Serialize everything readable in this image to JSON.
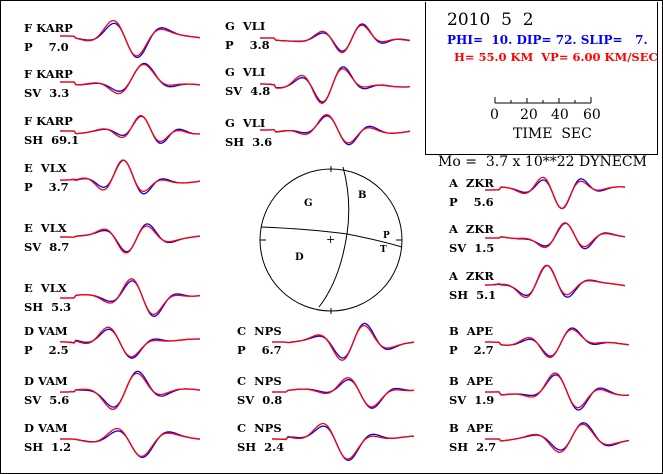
{
  "header": {
    "date": "2010  5  2",
    "mechanism": "PHI=  10. DIP= 72. SLIP=   7.",
    "depth_velocity": "H= 55.0 KM  VP= 6.00 KM/SEC",
    "scale_ticks": [
      "0",
      "20",
      "40",
      "60"
    ],
    "scale_label": "TIME  SEC",
    "moment": "Mo =  3.7 x 10**22 DYNECM"
  },
  "colors": {
    "observed": "#0000ff",
    "synthetic": "#ff0000"
  },
  "beachball": {
    "labels": {
      "b": "B",
      "d": "D",
      "p": "P",
      "t": "T",
      "g": "G",
      "center": "+"
    }
  },
  "traces": [
    {
      "station": "F KARP",
      "comp": "P    7.0"
    },
    {
      "station": "F KARP",
      "comp": "SV  3.3"
    },
    {
      "station": "F KARP",
      "comp": "SH  69.1"
    },
    {
      "station": "E  VLX",
      "comp": "P    3.7"
    },
    {
      "station": "E  VLX",
      "comp": "SV  8.7"
    },
    {
      "station": "E  VLX",
      "comp": "SH  5.3"
    },
    {
      "station": "D VAM",
      "comp": "P    2.5"
    },
    {
      "station": "D VAM",
      "comp": "SV  5.6"
    },
    {
      "station": "D VAM",
      "comp": "SH  1.2"
    },
    {
      "station": "G  VLI",
      "comp": "P    3.8"
    },
    {
      "station": "G  VLI",
      "comp": "SV  4.8"
    },
    {
      "station": "G  VLI",
      "comp": "SH  3.6"
    },
    {
      "station": "C  NPS",
      "comp": "P    6.7"
    },
    {
      "station": "C  NPS",
      "comp": "SV  0.8"
    },
    {
      "station": "C  NPS",
      "comp": "SH  2.4"
    },
    {
      "station": "A  ZKR",
      "comp": "P    5.6"
    },
    {
      "station": "A  ZKR",
      "comp": "SV  1.5"
    },
    {
      "station": "A  ZKR",
      "comp": "SH  5.1"
    },
    {
      "station": "B  APE",
      "comp": "P    2.7"
    },
    {
      "station": "B  APE",
      "comp": "SV  1.9"
    },
    {
      "station": "B  APE",
      "comp": "SH  2.7"
    }
  ]
}
